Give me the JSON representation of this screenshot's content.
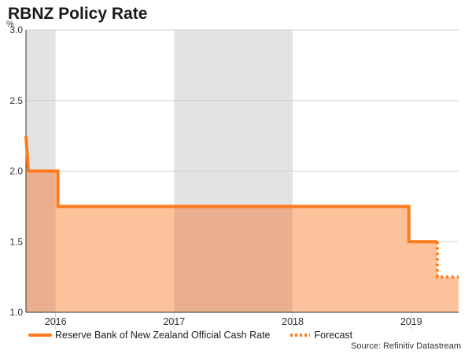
{
  "title": "RBNZ Policy Rate",
  "source": "Source: Refinitiv Datastream",
  "colors": {
    "line": "#ff7a1a",
    "fill": "#fcc29c",
    "shade": "#e3e3e3",
    "fill_on_shade": "#eaaf8e"
  },
  "chart_data": {
    "type": "area",
    "title": "RBNZ Policy Rate",
    "ylabel": "%",
    "xlabel": "",
    "ylim": [
      1.0,
      3.0
    ],
    "yticks": [
      1.0,
      1.5,
      2.0,
      2.5,
      3.0
    ],
    "ytick_labels": [
      "1.0",
      "1.5",
      "2.0",
      "2.5",
      "3.0"
    ],
    "xlim": [
      2015.75,
      2019.4
    ],
    "year_labels": [
      {
        "label": "2016",
        "x": 2016.0
      },
      {
        "label": "2017",
        "x": 2017.0
      },
      {
        "label": "2018",
        "x": 2018.0
      },
      {
        "label": "2019",
        "x": 2019.0
      }
    ],
    "year_boundaries": [
      2016.0,
      2017.0,
      2018.0,
      2019.0
    ],
    "shaded_years": [
      [
        2015.75,
        2016.0
      ],
      [
        2017.0,
        2018.0
      ]
    ],
    "series": [
      {
        "name": "Reserve Bank of New Zealand Official Cash Rate",
        "style": "solid",
        "steps": [
          {
            "x": 2015.75,
            "y": 2.25
          },
          {
            "x": 2015.77,
            "y": 2.0
          },
          {
            "x": 2016.02,
            "y": 2.0
          },
          {
            "x": 2016.02,
            "y": 1.75
          },
          {
            "x": 2018.98,
            "y": 1.75
          },
          {
            "x": 2018.98,
            "y": 1.5
          },
          {
            "x": 2019.22,
            "y": 1.5
          }
        ]
      },
      {
        "name": "Forecast",
        "style": "dotted",
        "steps": [
          {
            "x": 2019.22,
            "y": 1.5
          },
          {
            "x": 2019.22,
            "y": 1.25
          },
          {
            "x": 2019.4,
            "y": 1.25
          }
        ]
      }
    ]
  },
  "legend": {
    "series_label": "Reserve Bank of New Zealand Official Cash Rate",
    "forecast_label": "Forecast"
  }
}
